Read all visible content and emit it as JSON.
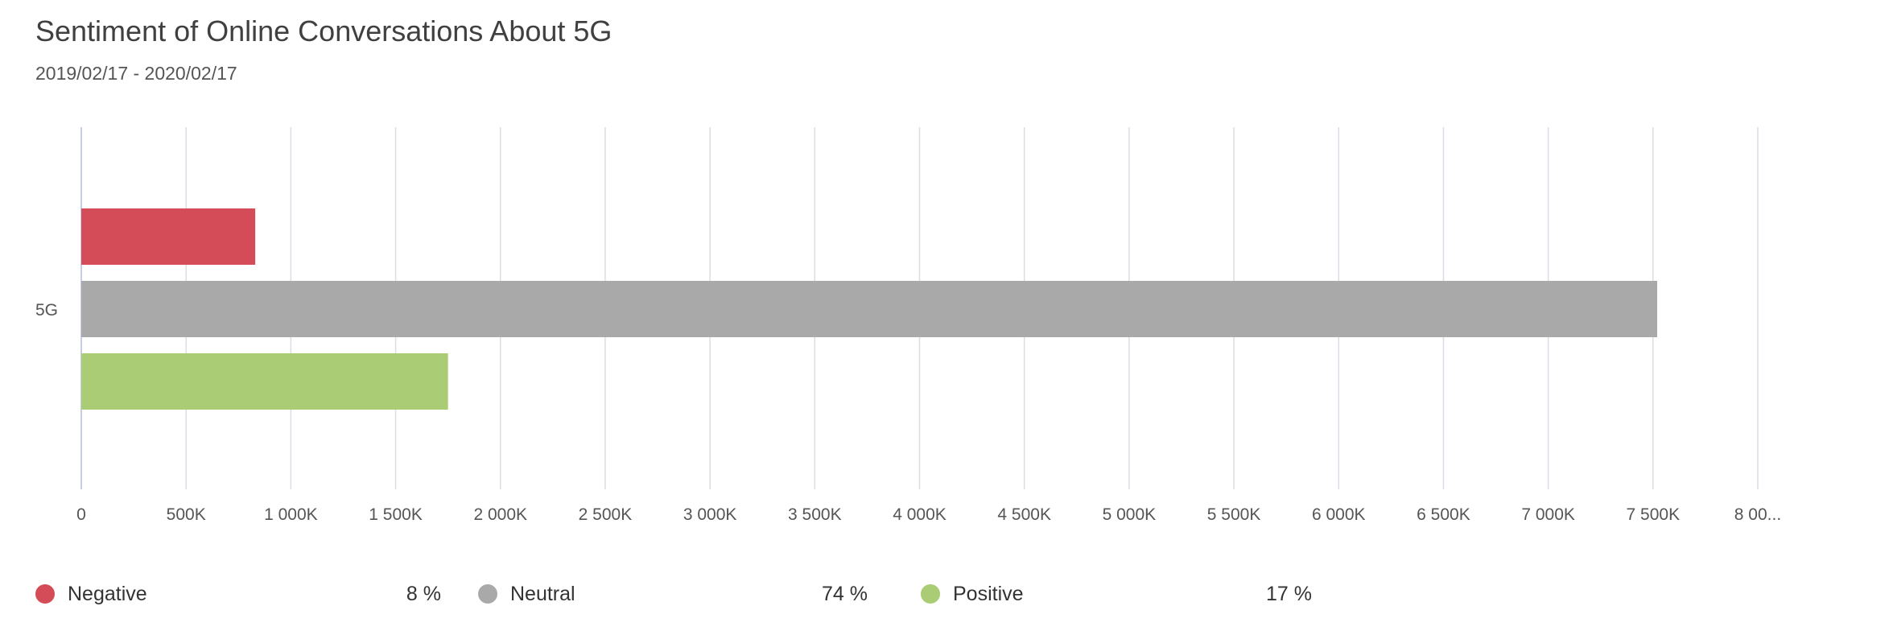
{
  "title": "Sentiment of Online Conversations About 5G",
  "subtitle": "2019/02/17 - 2020/02/17",
  "colors": {
    "negative": "#d44c58",
    "neutral": "#a9a9a9",
    "positive": "#a9cc75",
    "grid": "#dcdce6",
    "axis": "#c6cde6"
  },
  "chart_data": {
    "type": "bar",
    "orientation": "horizontal",
    "categories": [
      "5G"
    ],
    "series": [
      {
        "name": "Negative",
        "values": [
          830000
        ],
        "color": "#d44c58"
      },
      {
        "name": "Neutral",
        "values": [
          7520000
        ],
        "color": "#a9a9a9"
      },
      {
        "name": "Positive",
        "values": [
          1750000
        ],
        "color": "#a9cc75"
      }
    ],
    "xlim": [
      0,
      8000000
    ],
    "x_ticks": [
      0,
      500000,
      1000000,
      1500000,
      2000000,
      2500000,
      3000000,
      3500000,
      4000000,
      4500000,
      5000000,
      5500000,
      6000000,
      6500000,
      7000000,
      7500000,
      8000000
    ],
    "x_tick_labels": [
      "0",
      "500K",
      "1 000K",
      "1 500K",
      "2 000K",
      "2 500K",
      "3 000K",
      "3 500K",
      "4 000K",
      "4 500K",
      "5 000K",
      "5 500K",
      "6 000K",
      "6 500K",
      "7 000K",
      "7 500K",
      "8 00..."
    ],
    "grid": true,
    "legend_position": "bottom"
  },
  "legend": [
    {
      "label": "Negative",
      "percent": "8 %",
      "color": "#d44c58"
    },
    {
      "label": "Neutral",
      "percent": "74 %",
      "color": "#a9a9a9"
    },
    {
      "label": "Positive",
      "percent": "17 %",
      "color": "#a9cc75"
    }
  ]
}
